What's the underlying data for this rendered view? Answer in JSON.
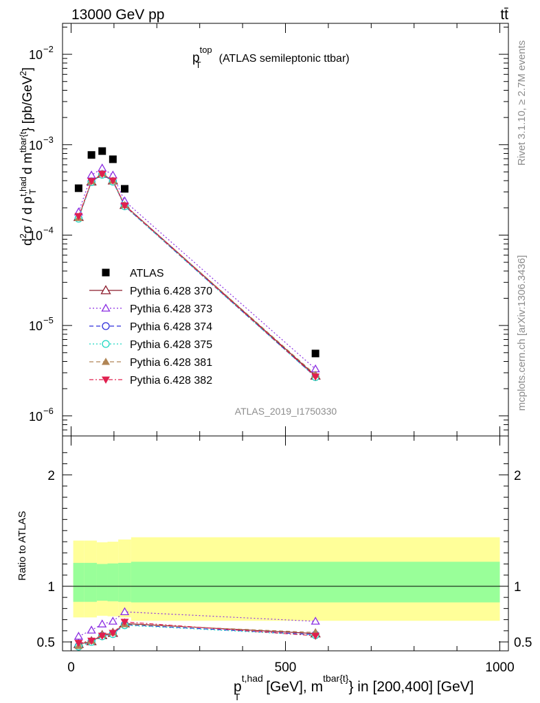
{
  "header": {
    "left": "13000 GeV pp",
    "right": "tt̄"
  },
  "side_labels": {
    "rivet": "Rivet 3.1.10, ≥ 2.7M events",
    "mcplots": "mcplots.cern.ch [arXiv:1306.3436]"
  },
  "analysis_id": "ATLAS_2019_I1750330",
  "colors": {
    "atlas": "#000000",
    "p370": "#8b1a2b",
    "p373": "#8a2be2",
    "p374": "#2b2bd9",
    "p375": "#19d6c0",
    "p381": "#b08555",
    "p382": "#e0204f",
    "band_outer": "#ffff99",
    "band_inner": "#99ff99"
  },
  "chart_data": [
    {
      "type": "scatter",
      "title": "p_T^top (ATLAS semileptonic ttbar)",
      "title_parts": {
        "main": "p",
        "sub": "T",
        "sup": "top",
        "paren": "(ATLAS semileptonic ttbar)"
      },
      "ylabel": "d²σ / d p_T^{t,had} d m^{tbar{t}} [pb/GeV²]",
      "xlim": [
        -20,
        1020
      ],
      "ylim": [
        6e-07,
        0.022
      ],
      "yscale": "log",
      "ytick_labels": [
        {
          "value": 1e-06,
          "base": "10",
          "exp": "−6"
        },
        {
          "value": 1e-05,
          "base": "10",
          "exp": "−5"
        },
        {
          "value": 0.0001,
          "base": "10",
          "exp": "−4"
        },
        {
          "value": 0.001,
          "base": "10",
          "exp": "−3"
        },
        {
          "value": 0.01,
          "base": "10",
          "exp": "−2"
        }
      ],
      "legend_position": "middle-left",
      "x": [
        17.5,
        47.5,
        72.5,
        97.5,
        125,
        570
      ],
      "series": [
        {
          "name": "ATLAS",
          "key": "atlas",
          "marker": "square",
          "dash": "",
          "values": [
            0.00033,
            0.00077,
            0.00085,
            0.00069,
            0.000325,
            4.9e-06
          ]
        },
        {
          "name": "Pythia 6.428 370",
          "key": "p370",
          "marker": "triangle-open",
          "dash": "",
          "values": [
            0.000158,
            0.00039,
            0.000475,
            0.0004,
            0.000215,
            2.78e-06
          ]
        },
        {
          "name": "Pythia 6.428 373",
          "key": "p373",
          "marker": "triangle-open-small",
          "dash": "2,3",
          "values": [
            0.00018,
            0.00046,
            0.00055,
            0.00046,
            0.000238,
            3.3e-06
          ]
        },
        {
          "name": "Pythia 6.428 374",
          "key": "p374",
          "marker": "circle-open",
          "dash": "6,4",
          "values": [
            0.000153,
            0.00039,
            0.00047,
            0.000395,
            0.00021,
            2.7e-06
          ]
        },
        {
          "name": "Pythia 6.428 375",
          "key": "p375",
          "marker": "circle-open",
          "dash": "2,3",
          "values": [
            0.000152,
            0.000385,
            0.000465,
            0.00039,
            0.000208,
            2.68e-06
          ]
        },
        {
          "name": "Pythia 6.428 381",
          "key": "p381",
          "marker": "triangle-filled",
          "dash": "6,4",
          "values": [
            0.000155,
            0.000395,
            0.00048,
            0.0004,
            0.000215,
            2.85e-06
          ]
        },
        {
          "name": "Pythia 6.428 382",
          "key": "p382",
          "marker": "triangle-down-filled",
          "dash": "6,3,2,3",
          "values": [
            0.000162,
            0.000395,
            0.000475,
            0.0004,
            0.000212,
            2.72e-06
          ]
        }
      ]
    },
    {
      "type": "scatter",
      "xlabel": "p_T^{t,had} [GeV], m^{tbar{t}} in [200,400] [GeV]",
      "xlabel_parts": {
        "p": "p",
        "sub": "T",
        "sup": "t,had",
        "mid": " [GeV], m",
        "sup2": "tbar{t}",
        "rest": "} in [200,400] [GeV]"
      },
      "ylabel": "Ratio to ATLAS",
      "xlim": [
        -20,
        1020
      ],
      "ylim": [
        0.42,
        2.35
      ],
      "xtick_labels": [
        "0",
        "500",
        "1000"
      ],
      "ytick_labels": [
        "0.5",
        "1",
        "2"
      ],
      "reference_line": 1,
      "bands": {
        "edges": [
          5,
          30,
          60,
          85,
          110,
          140,
          1000
        ],
        "outer_lo": [
          0.72,
          0.72,
          0.735,
          0.73,
          0.72,
          0.69
        ],
        "outer_hi": [
          1.41,
          1.41,
          1.395,
          1.4,
          1.42,
          1.44
        ],
        "inner_lo": [
          0.86,
          0.86,
          0.87,
          0.865,
          0.86,
          0.855
        ],
        "inner_hi": [
          1.21,
          1.21,
          1.2,
          1.205,
          1.21,
          1.22
        ]
      },
      "x": [
        17.5,
        47.5,
        72.5,
        97.5,
        125,
        570
      ],
      "series": [
        {
          "name": "Pythia 6.428 370",
          "key": "p370",
          "marker": "triangle-open",
          "dash": "",
          "values": [
            0.48,
            0.505,
            0.56,
            0.58,
            0.665,
            0.575
          ]
        },
        {
          "name": "Pythia 6.428 373",
          "key": "p373",
          "marker": "triangle-open-small",
          "dash": "2,3",
          "values": [
            0.55,
            0.605,
            0.66,
            0.685,
            0.77,
            0.685
          ]
        },
        {
          "name": "Pythia 6.428 374",
          "key": "p374",
          "marker": "circle-open",
          "dash": "6,4",
          "values": [
            0.462,
            0.505,
            0.555,
            0.575,
            0.655,
            0.565
          ]
        },
        {
          "name": "Pythia 6.428 375",
          "key": "p375",
          "marker": "circle-open",
          "dash": "2,3",
          "values": [
            0.458,
            0.5,
            0.55,
            0.57,
            0.65,
            0.56
          ]
        },
        {
          "name": "Pythia 6.428 381",
          "key": "p381",
          "marker": "triangle-filled",
          "dash": "6,4",
          "values": [
            0.465,
            0.51,
            0.565,
            0.585,
            0.66,
            0.585
          ]
        },
        {
          "name": "Pythia 6.428 382",
          "key": "p382",
          "marker": "triangle-down-filled",
          "dash": "6,3,2,3",
          "values": [
            0.49,
            0.51,
            0.555,
            0.58,
            0.68,
            0.555
          ]
        }
      ]
    }
  ]
}
